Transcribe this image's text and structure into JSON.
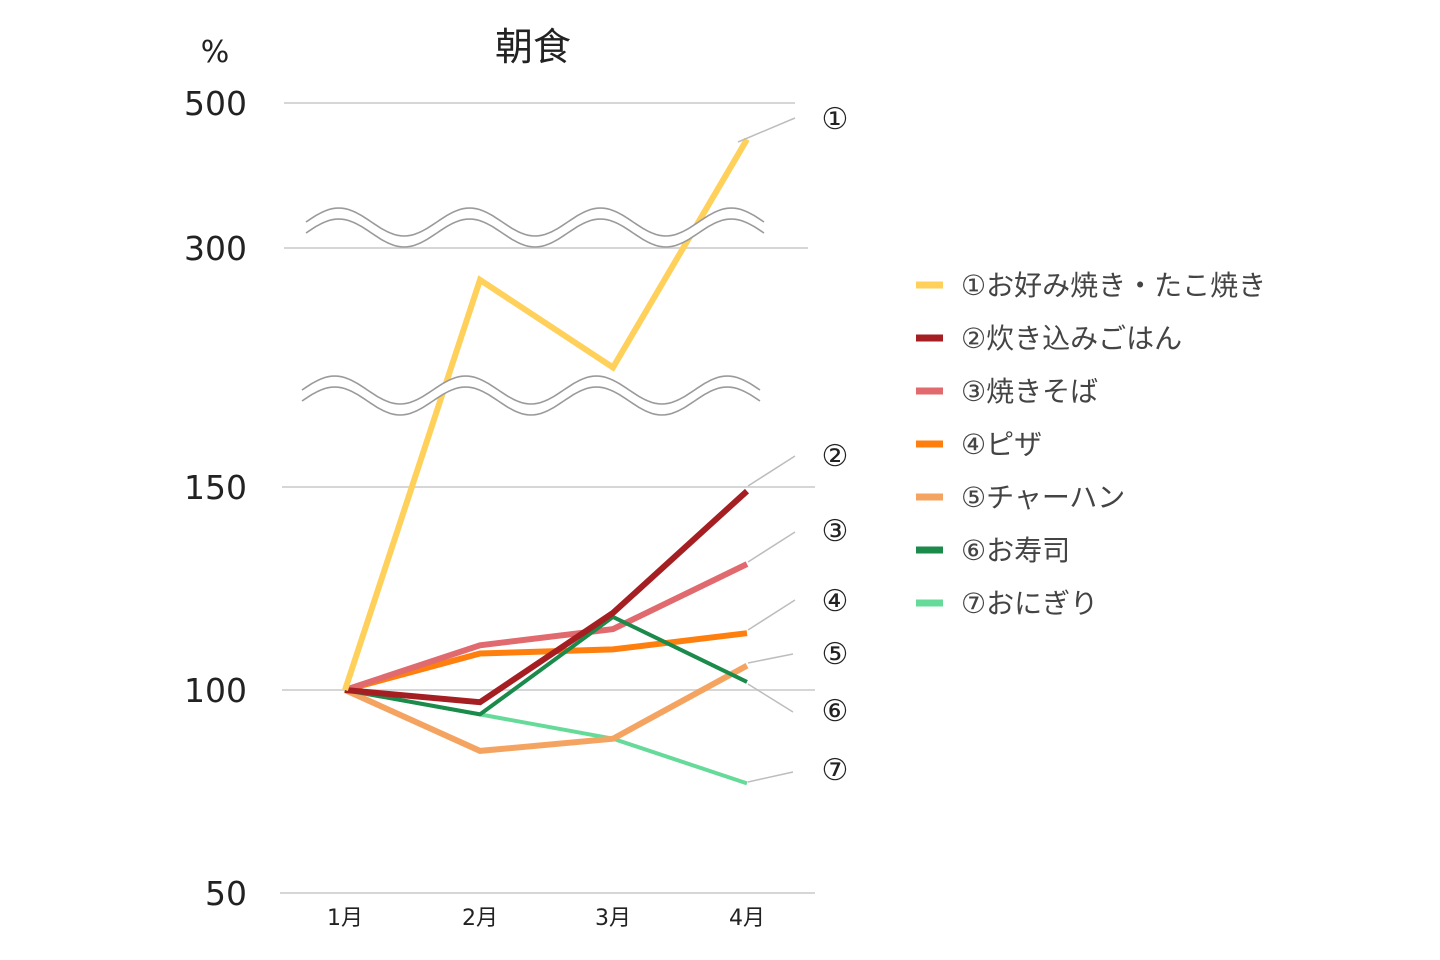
{
  "chart_data": {
    "type": "line",
    "title": "朝食",
    "ylabel": "%",
    "xlabel": "",
    "categories": [
      "1月",
      "2月",
      "3月",
      "4月"
    ],
    "y_ticks": [
      50,
      100,
      150,
      300,
      500
    ],
    "y_scale": "broken axis (breaks between 150–300 and 300–500)",
    "grid": true,
    "legend_position": "right",
    "series": [
      {
        "name": "①お好み焼き・たこ焼き",
        "marker": "①",
        "color": "#FFD05A",
        "values": [
          100,
          280,
          225,
          450
        ]
      },
      {
        "name": "②炊き込みごはん",
        "marker": "②",
        "color": "#A51E22",
        "values": [
          100,
          97,
          119,
          149
        ]
      },
      {
        "name": "③焼きそば",
        "marker": "③",
        "color": "#E06A6E",
        "values": [
          100,
          111,
          115,
          131
        ]
      },
      {
        "name": "④ピザ",
        "marker": "④",
        "color": "#FF7F0E",
        "values": [
          100,
          109,
          110,
          114
        ]
      },
      {
        "name": "⑤チャーハン",
        "marker": "⑤",
        "color": "#F4A460",
        "values": [
          100,
          85,
          88,
          106
        ]
      },
      {
        "name": "⑥お寿司",
        "marker": "⑥",
        "color": "#1B8A4B",
        "values": [
          100,
          94,
          118,
          102
        ]
      },
      {
        "name": "⑦おにぎり",
        "marker": "⑦",
        "color": "#66DB99",
        "values": [
          100,
          94,
          88,
          77
        ]
      }
    ]
  }
}
